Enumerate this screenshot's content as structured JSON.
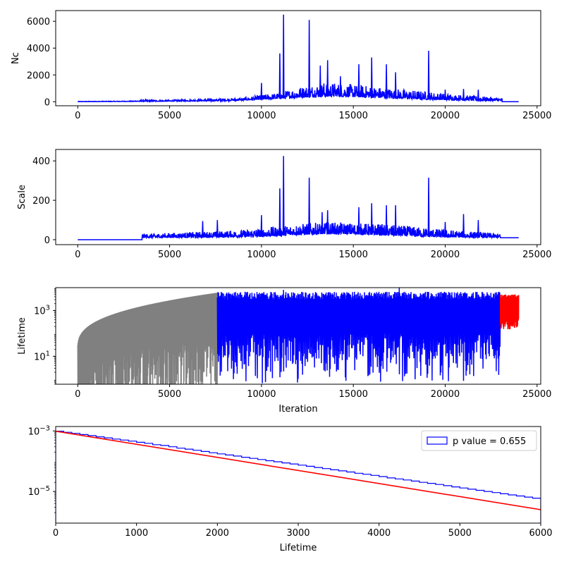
{
  "chart_data": [
    {
      "id": "nc",
      "type": "line",
      "ylabel": "Nc",
      "xlabel": "",
      "xlim": [
        -1200,
        25200
      ],
      "ylim": [
        -300,
        6800
      ],
      "yscale": "linear",
      "xticks": [
        0,
        5000,
        10000,
        15000,
        20000,
        25000
      ],
      "xtick_labels": [
        "0",
        "5000",
        "10000",
        "15000",
        "20000",
        "25000"
      ],
      "yticks": [
        0,
        2000,
        4000,
        6000
      ],
      "ytick_labels": [
        "0",
        "2000",
        "4000",
        "6000"
      ],
      "series": [
        {
          "color": "#0000ff",
          "envelope": [
            [
              0,
              30
            ],
            [
              3000,
              60
            ],
            [
              3500,
              150
            ],
            [
              5000,
              120
            ],
            [
              6500,
              200
            ],
            [
              8000,
              250
            ],
            [
              9000,
              300
            ],
            [
              10000,
              500
            ],
            [
              11000,
              700
            ],
            [
              12000,
              1100
            ],
            [
              13500,
              1500
            ],
            [
              15000,
              1300
            ],
            [
              16500,
              1100
            ],
            [
              18000,
              900
            ],
            [
              19500,
              700
            ],
            [
              21000,
              500
            ],
            [
              22500,
              350
            ],
            [
              23000,
              300
            ]
          ],
          "baseline": [
            [
              0,
              0
            ],
            [
              3500,
              20
            ],
            [
              8000,
              60
            ],
            [
              10000,
              150
            ],
            [
              12000,
              300
            ],
            [
              14000,
              400
            ],
            [
              16000,
              300
            ],
            [
              18000,
              200
            ],
            [
              20000,
              120
            ],
            [
              23000,
              60
            ]
          ],
          "spikes": [
            [
              10000,
              1400
            ],
            [
              11000,
              3600
            ],
            [
              11200,
              6500
            ],
            [
              12600,
              6100
            ],
            [
              13200,
              2700
            ],
            [
              13600,
              3100
            ],
            [
              14300,
              1900
            ],
            [
              15300,
              2800
            ],
            [
              16000,
              3300
            ],
            [
              16800,
              2800
            ],
            [
              17300,
              2200
            ],
            [
              19100,
              3800
            ],
            [
              20000,
              900
            ],
            [
              21000,
              950
            ],
            [
              21800,
              900
            ]
          ],
          "tail": [
            [
              23100,
              0
            ],
            [
              24000,
              0
            ]
          ]
        }
      ]
    },
    {
      "id": "scale",
      "type": "line",
      "ylabel": "Scale",
      "xlabel": "",
      "xlim": [
        -1200,
        25200
      ],
      "ylim": [
        -25,
        458
      ],
      "yscale": "linear",
      "xticks": [
        0,
        5000,
        10000,
        15000,
        20000,
        25000
      ],
      "xtick_labels": [
        "0",
        "5000",
        "10000",
        "15000",
        "20000",
        "25000"
      ],
      "yticks": [
        0,
        200,
        400
      ],
      "ytick_labels": [
        "0",
        "200",
        "400"
      ],
      "series": [
        {
          "color": "#0000ff",
          "flat_start": [
            [
              0,
              0
            ],
            [
              3500,
              0
            ]
          ],
          "envelope": [
            [
              3500,
              30
            ],
            [
              5000,
              35
            ],
            [
              6500,
              40
            ],
            [
              8000,
              45
            ],
            [
              9000,
              50
            ],
            [
              10000,
              60
            ],
            [
              11000,
              70
            ],
            [
              12000,
              80
            ],
            [
              13500,
              90
            ],
            [
              15000,
              85
            ],
            [
              16500,
              80
            ],
            [
              18000,
              70
            ],
            [
              19500,
              55
            ],
            [
              21000,
              45
            ],
            [
              22500,
              35
            ],
            [
              23000,
              30
            ]
          ],
          "baseline": [
            [
              3500,
              10
            ],
            [
              8000,
              12
            ],
            [
              10000,
              15
            ],
            [
              12000,
              25
            ],
            [
              14000,
              30
            ],
            [
              16000,
              25
            ],
            [
              18000,
              18
            ],
            [
              20000,
              12
            ],
            [
              23000,
              10
            ]
          ],
          "spikes": [
            [
              6800,
              95
            ],
            [
              7600,
              100
            ],
            [
              10000,
              125
            ],
            [
              11000,
              260
            ],
            [
              11200,
              425
            ],
            [
              12600,
              315
            ],
            [
              13300,
              140
            ],
            [
              13600,
              150
            ],
            [
              15300,
              165
            ],
            [
              16000,
              185
            ],
            [
              16800,
              175
            ],
            [
              17300,
              175
            ],
            [
              19100,
              315
            ],
            [
              20000,
              90
            ],
            [
              21000,
              130
            ],
            [
              21800,
              100
            ]
          ],
          "tail": [
            [
              23000,
              10
            ],
            [
              24000,
              10
            ]
          ]
        }
      ]
    },
    {
      "id": "lifetime",
      "type": "line",
      "ylabel": "Lifetime",
      "xlabel": "Iteration",
      "xlim": [
        -1200,
        25200
      ],
      "ylim": [
        0.6,
        10000
      ],
      "yscale": "log",
      "xticks": [
        0,
        5000,
        10000,
        15000,
        20000,
        25000
      ],
      "xtick_labels": [
        "0",
        "5000",
        "10000",
        "15000",
        "20000",
        "25000"
      ],
      "yticks": [
        10,
        1000
      ],
      "ytick_base": "10",
      "ytick_exponents": [
        "1",
        "3"
      ],
      "series": [
        {
          "color": "#808080",
          "x_range": [
            0,
            7600
          ],
          "upper": "grows",
          "upper_end": 6000
        },
        {
          "color": "#0000ff",
          "x_range": [
            7600,
            23000
          ],
          "upper_level": 6000,
          "upper_spikes": [
            [
              17500,
              10000
            ],
            [
              11200,
              8000
            ]
          ]
        },
        {
          "color": "#ff0000",
          "x_range": [
            23000,
            24000
          ],
          "upper_level": 5000,
          "lower_level": 300
        }
      ]
    },
    {
      "id": "histogram",
      "type": "histogram",
      "ylabel": "",
      "xlabel": "Lifetime",
      "xlim": [
        0,
        6000
      ],
      "ylim": [
        9e-07,
        0.0014
      ],
      "yscale": "log",
      "xticks": [
        0,
        1000,
        2000,
        3000,
        4000,
        5000,
        6000
      ],
      "xtick_labels": [
        "0",
        "1000",
        "2000",
        "3000",
        "4000",
        "5000",
        "6000"
      ],
      "yticks": [
        1e-05,
        0.001
      ],
      "ytick_base": "10",
      "ytick_exponents": [
        "−5",
        "−3"
      ],
      "legend": {
        "label": "p value = 0.655",
        "placement": "top-right"
      },
      "bin_width": 100,
      "bins": [
        0.00098,
        0.0009,
        0.00083,
        0.00076,
        0.0007,
        0.00064,
        0.00059,
        0.00054,
        0.0005,
        0.00046,
        0.00042,
        0.00039,
        0.00035,
        0.00033,
        0.0003,
        0.00027,
        0.00025,
        0.00023,
        0.00021,
        0.00019,
        0.000175,
        0.00016,
        0.000148,
        0.000135,
        0.000124,
        0.000114,
        0.000104,
        9.6e-05,
        8.8e-05,
        8.1e-05,
        7.4e-05,
        6.8e-05,
        6.2e-05,
        5.7e-05,
        5.2e-05,
        4.8e-05,
        4.4e-05,
        4e-05,
        3.7e-05,
        3.4e-05,
        3.1e-05,
        2.8e-05,
        2.6e-05,
        2.4e-05,
        2.2e-05,
        2e-05,
        1.85e-05,
        1.7e-05,
        1.55e-05,
        1.42e-05,
        1.3e-05,
        1.19e-05,
        1.09e-05,
        1e-05,
        9.2e-06,
        8.4e-06,
        7.7e-06,
        7.1e-06,
        6.5e-06,
        6e-06
      ],
      "fit": {
        "color": "#ff0000",
        "x": [
          0,
          6000
        ],
        "y": [
          0.00098,
          2.5e-06
        ]
      },
      "histogram_color": "#0000ff"
    }
  ]
}
